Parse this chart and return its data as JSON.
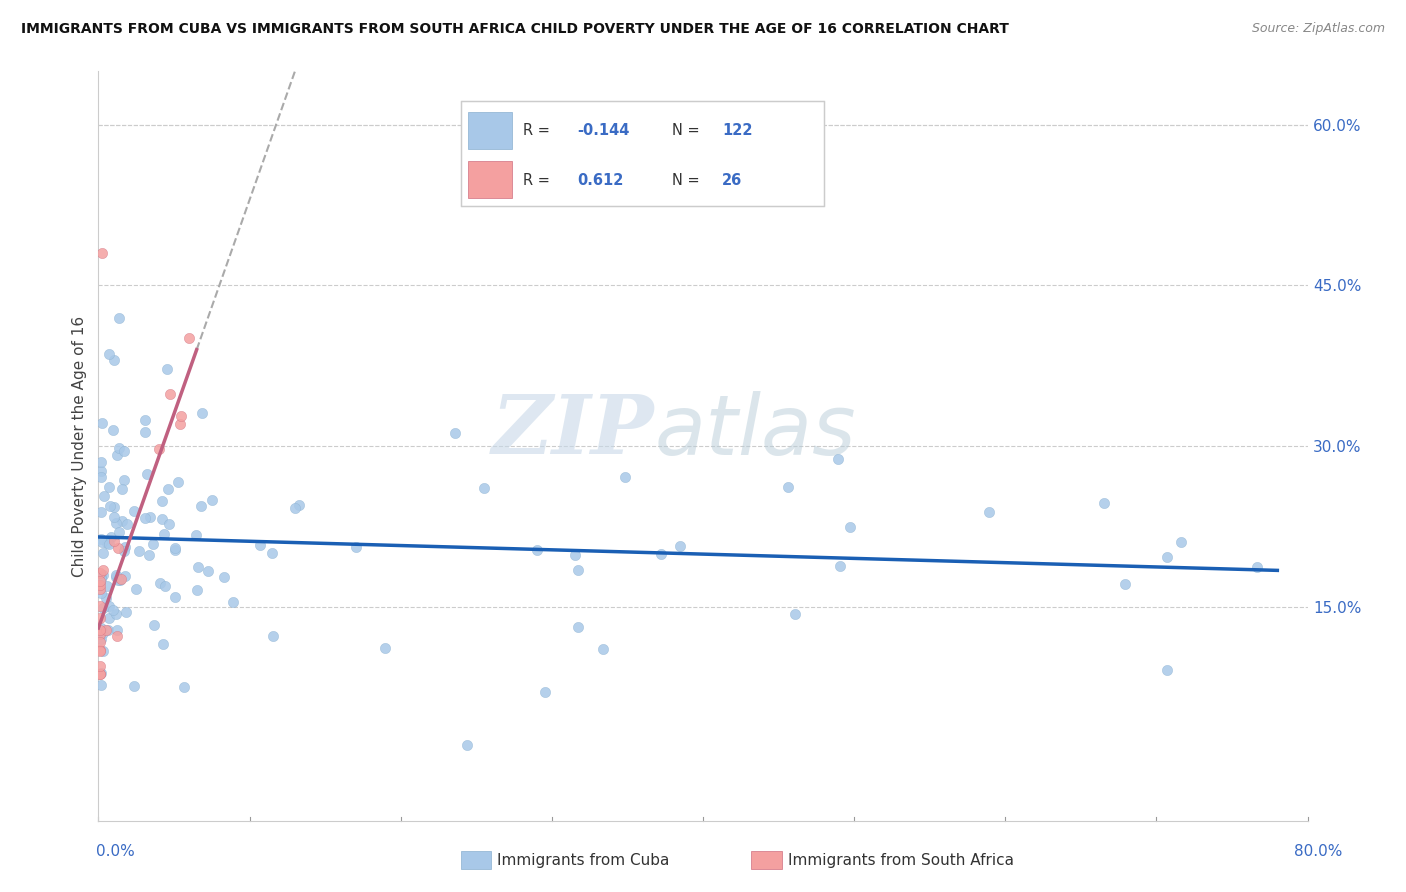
{
  "title": "IMMIGRANTS FROM CUBA VS IMMIGRANTS FROM SOUTH AFRICA CHILD POVERTY UNDER THE AGE OF 16 CORRELATION CHART",
  "source": "Source: ZipAtlas.com",
  "ylabel": "Child Poverty Under the Age of 16",
  "yticks_labels": [
    "15.0%",
    "30.0%",
    "45.0%",
    "60.0%"
  ],
  "ytick_vals": [
    0.15,
    0.3,
    0.45,
    0.6
  ],
  "xlim": [
    0.0,
    0.8
  ],
  "ylim": [
    -0.05,
    0.65
  ],
  "legend1_label": "Immigrants from Cuba",
  "legend2_label": "Immigrants from South Africa",
  "r1": "-0.144",
  "n1": "122",
  "r2": "0.612",
  "n2": "26",
  "color_cuba": "#a8c8e8",
  "color_south_africa": "#f4a0a0",
  "color_cuba_line": "#1a5fb4",
  "color_sa_line": "#c06080",
  "watermark_zip": "ZIP",
  "watermark_atlas": "atlas",
  "background_color": "#ffffff"
}
